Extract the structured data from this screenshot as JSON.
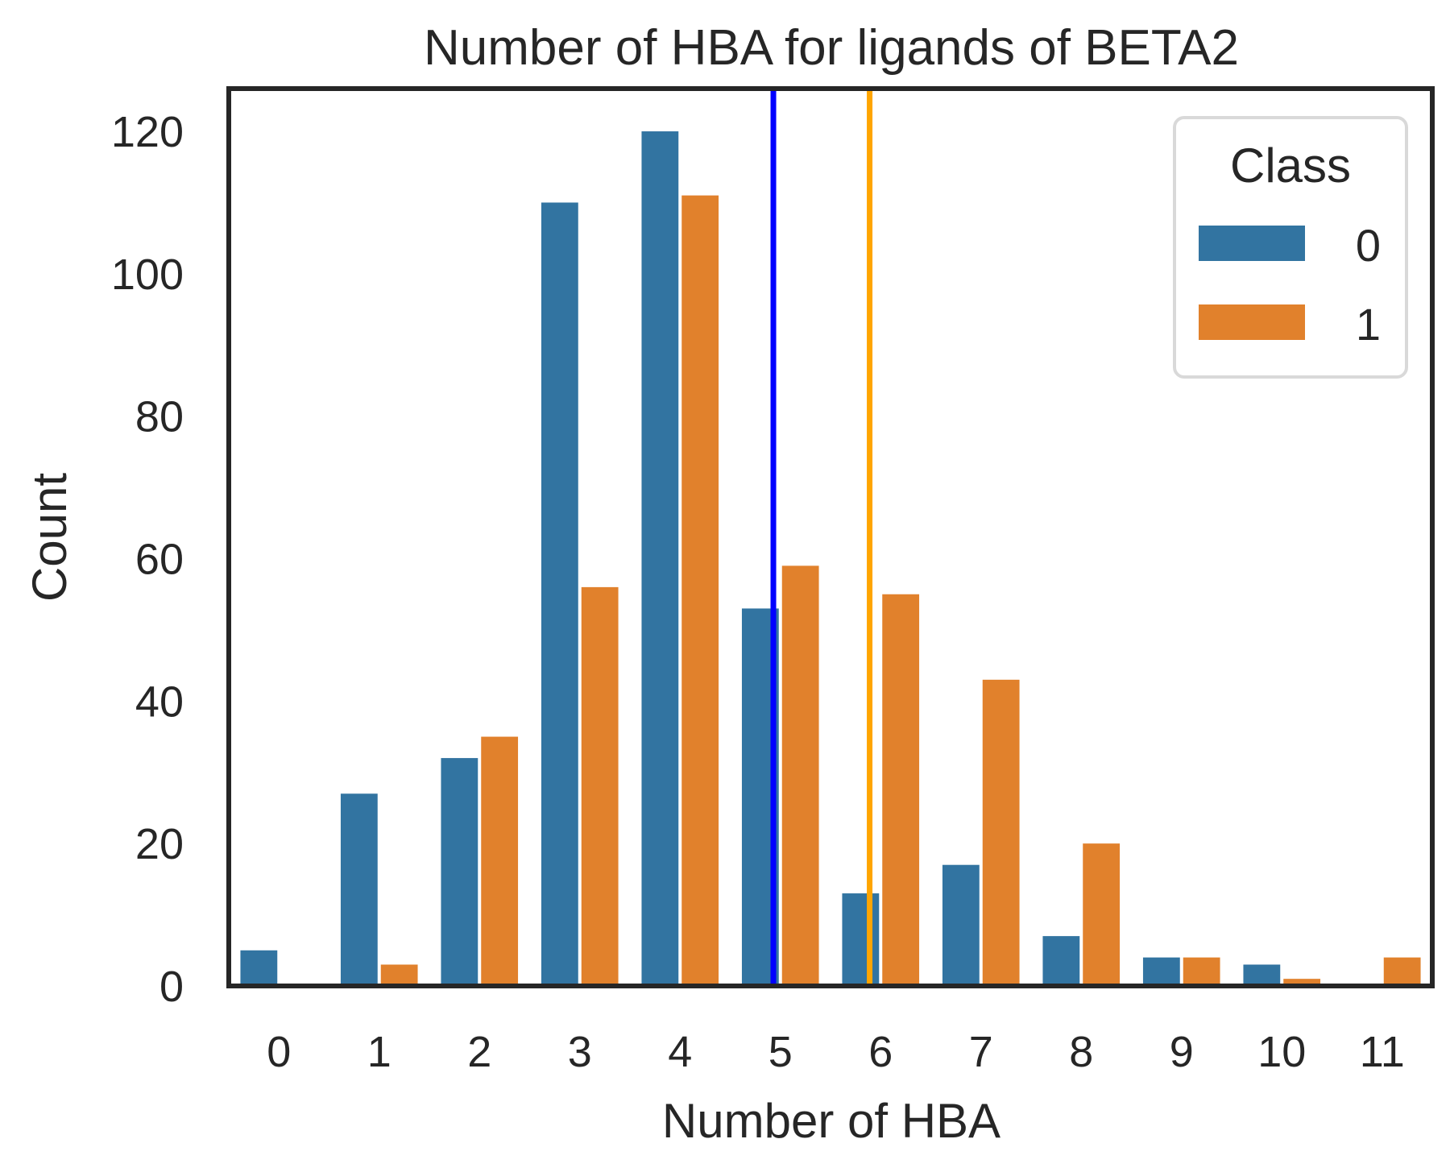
{
  "chart_data": {
    "type": "bar",
    "title": "Number of HBA for ligands of BETA2",
    "xlabel": "Number of HBA",
    "ylabel": "Count",
    "categories": [
      "0",
      "1",
      "2",
      "3",
      "4",
      "5",
      "6",
      "7",
      "8",
      "9",
      "10",
      "11"
    ],
    "series": [
      {
        "name": "0",
        "color": "#3274a1",
        "values": [
          5,
          27,
          32,
          110,
          120,
          53,
          13,
          17,
          7,
          4,
          3,
          0
        ]
      },
      {
        "name": "1",
        "color": "#e1812c",
        "values": [
          0,
          3,
          35,
          56,
          111,
          59,
          55,
          43,
          20,
          4,
          1,
          4
        ]
      }
    ],
    "vlines": [
      {
        "x": 4.93,
        "color": "#0000ff"
      },
      {
        "x": 5.89,
        "color": "#ffa500"
      }
    ],
    "ylim": [
      0,
      126
    ],
    "yticks": [
      0,
      20,
      40,
      60,
      80,
      100,
      120
    ],
    "grid": false,
    "legend": {
      "title": "Class",
      "position": "upper right"
    }
  }
}
